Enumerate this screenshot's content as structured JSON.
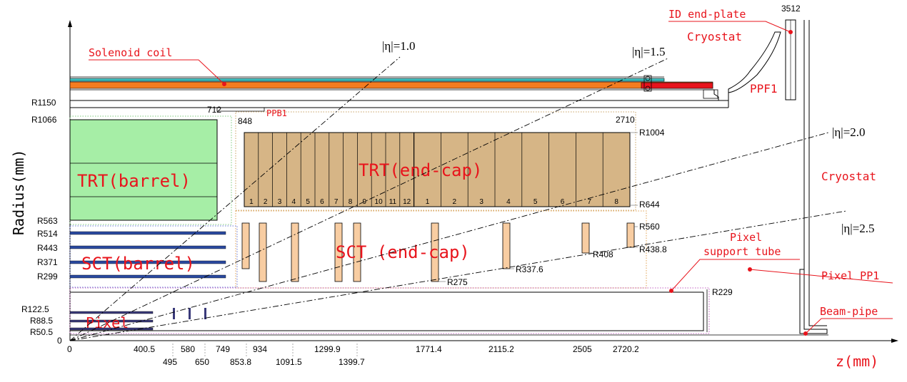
{
  "axis": {
    "y_label": "Radius(mm)",
    "x_label": "z(mm)",
    "origin": "0",
    "r_ticks": [
      "R1150",
      "R1066",
      "R563",
      "R514",
      "R443",
      "R371",
      "R299",
      "R122.5",
      "R88.5",
      "R50.5"
    ],
    "z_ticks_row1": [
      "0",
      "400.5",
      "580",
      "749",
      "934",
      "1299.9",
      "1771.4",
      "2115.2",
      "2505",
      "2720.2"
    ],
    "z_ticks_row2": [
      "495",
      "650",
      "853.8",
      "1091.5",
      "1399.7"
    ]
  },
  "eta_lines": [
    "|η|=1.0",
    "|η|=1.5",
    "|η|=2.0",
    "|η|=2.5"
  ],
  "labels": {
    "solenoid_coil": "Solenoid coil",
    "id_end_plate": "ID end-plate",
    "cryostat_top": "Cryostat",
    "cryostat_right": "Cryostat",
    "ppf1": "PPF1",
    "ppb1": "PPB1",
    "trt_barrel": "TRT(barrel)",
    "trt_endcap": "TRT(end-cap)",
    "sct_barrel": "SCT(barrel)",
    "sct_endcap": "SCT (end-cap)",
    "pixel": "Pixel",
    "pixel_support_line1": "Pixel",
    "pixel_support_line2": "support tube",
    "pixel_pp1": "Pixel PP1",
    "beam_pipe": "Beam-pipe"
  },
  "dimensions": {
    "z3512": "3512",
    "z712": "712",
    "z848": "848",
    "z2710": "2710",
    "r1004": "R1004",
    "r644": "R644",
    "r560": "R560",
    "r438_8": "R438.8",
    "r408": "R408",
    "r337_6": "R337.6",
    "r275": "R275",
    "r229": "R229"
  },
  "trt_wheels": [
    "1",
    "2",
    "3",
    "4",
    "5",
    "6",
    "7",
    "8",
    "9",
    "10",
    "11",
    "12",
    "1",
    "2",
    "3",
    "4",
    "5",
    "6",
    "7",
    "8"
  ],
  "colors": {
    "trt_fill": "#a6eea6",
    "trt_endcap_fill": "#d6b586",
    "sct_disk_fill": "#f8cda2",
    "solenoid_orange": "#f47c20",
    "solenoid_teal": "#3ec1c1",
    "ppf1_red": "#e8141c",
    "stave_blue": "#2b4aa0",
    "label_red": "#e8141c"
  }
}
